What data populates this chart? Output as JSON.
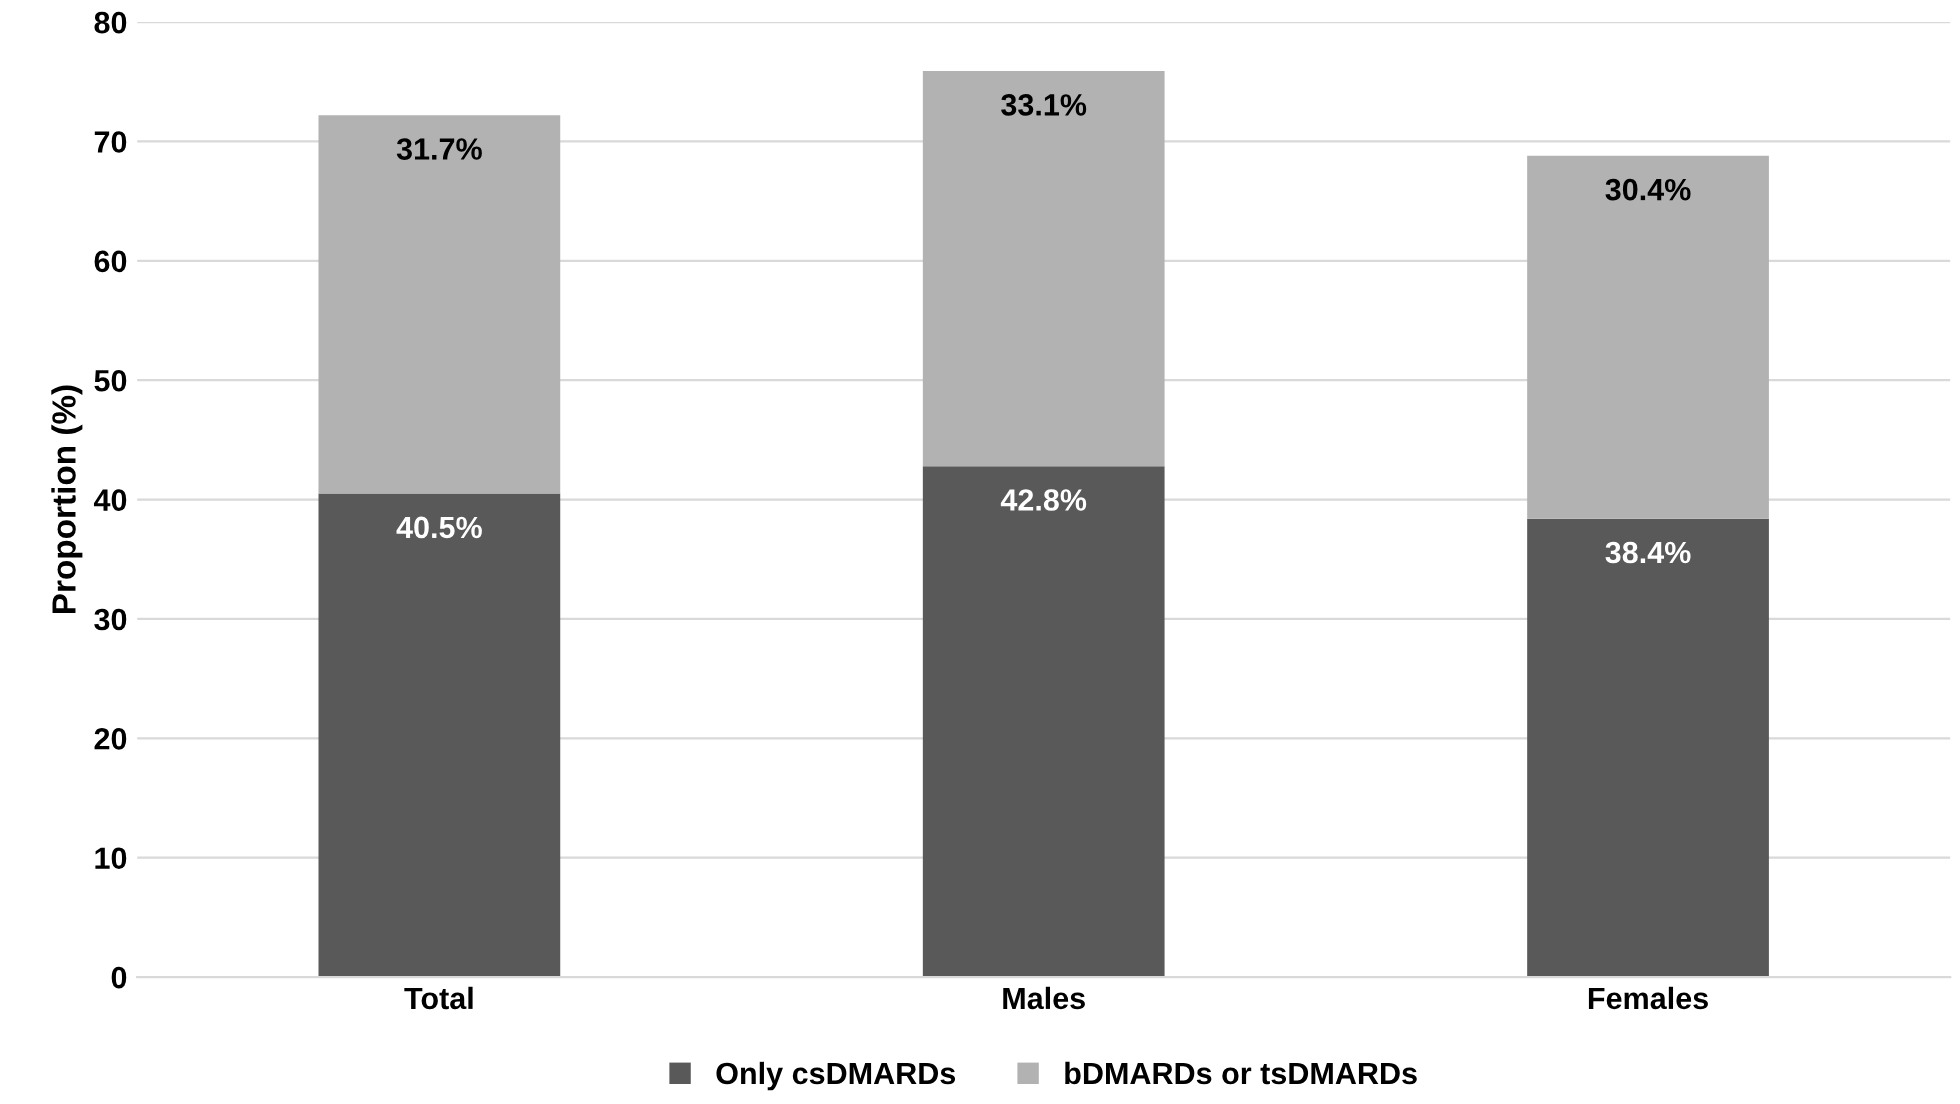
{
  "chart_data": {
    "type": "bar",
    "stacked": true,
    "ylabel": "Proportion (%)",
    "categories": [
      "Total",
      "Males",
      "Females"
    ],
    "series": [
      {
        "name": "Only csDMARDs",
        "color": "#595959",
        "values": [
          40.5,
          42.8,
          38.4
        ],
        "value_labels": [
          "40.5%",
          "42.8%",
          "38.4%"
        ]
      },
      {
        "name": "bDMARDs or tsDMARDs",
        "color": "#b2b2b2",
        "values": [
          31.7,
          33.1,
          30.4
        ],
        "value_labels": [
          "31.7%",
          "33.1%",
          "30.4%"
        ]
      }
    ],
    "ylim": [
      0,
      80
    ],
    "yticks": [
      0,
      10,
      20,
      30,
      40,
      50,
      60,
      70,
      80
    ],
    "grid": "y",
    "legend": "bottom"
  }
}
